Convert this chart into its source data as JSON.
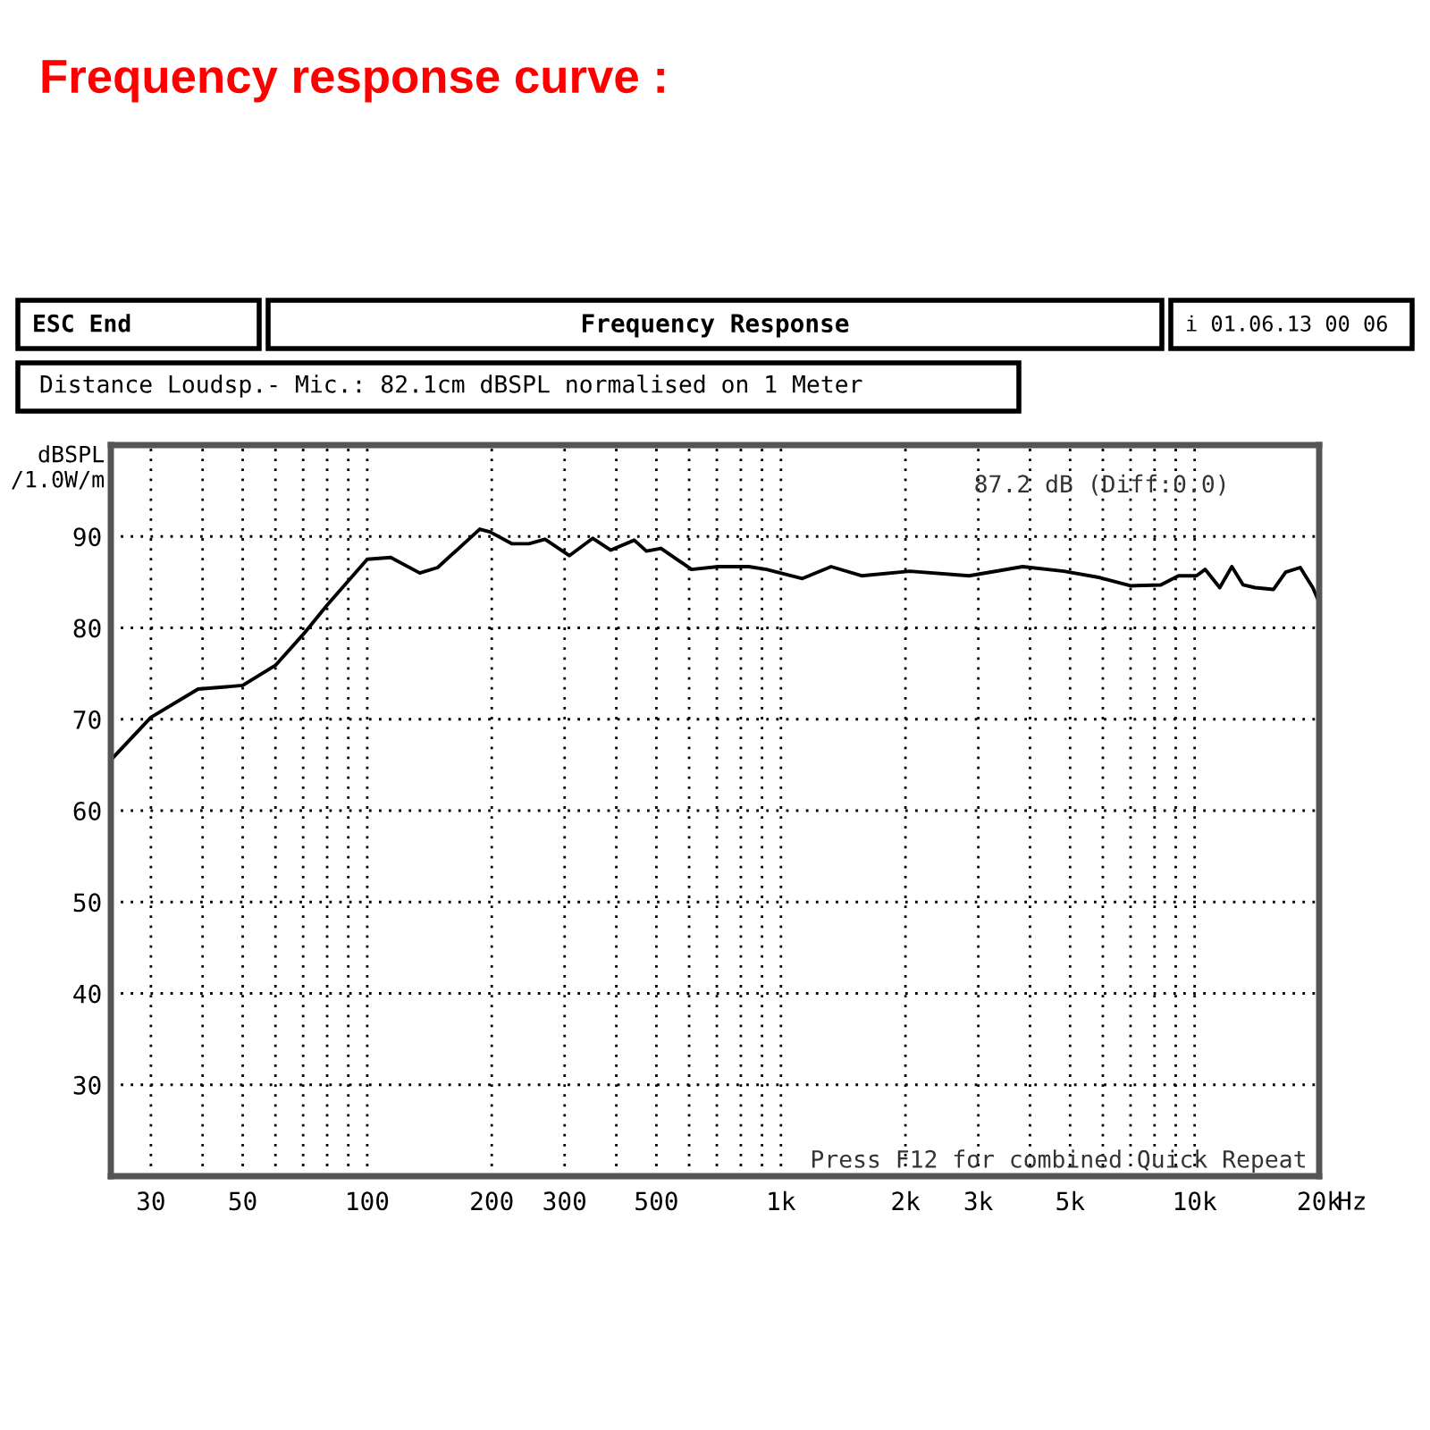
{
  "chart_data": {
    "type": "line",
    "title": "Frequency response curve :",
    "subtitle": "Frequency Response",
    "ylabel": "dBSPL\n/1.0W/m",
    "annotations": [
      "ESC End",
      "i 01.06.13 00 06",
      "Distance Loudsp.- Mic.: 82.1cm dBSPL normalised on 1 Meter",
      "87.2 dB (Diff:0.0)",
      "Press F12 for combined Quick Repeat"
    ],
    "log": "x",
    "grid": true,
    "line_style": "solid",
    "marker": "none",
    "xlim": [
      24,
      20000
    ],
    "ylim": [
      20,
      100
    ],
    "xticks": [
      30,
      {
        "value": 40,
        "label": null
      },
      50,
      {
        "value": 60,
        "label": null
      },
      {
        "value": 70,
        "label": null
      },
      {
        "value": 80,
        "label": null
      },
      {
        "value": 90,
        "label": null
      },
      100,
      200,
      300,
      {
        "value": 400,
        "label": null
      },
      500,
      {
        "value": 600,
        "label": null
      },
      {
        "value": 700,
        "label": null
      },
      {
        "value": 800,
        "label": null
      },
      {
        "value": 900,
        "label": null
      },
      {
        "value": 1000,
        "label": "1k"
      },
      {
        "value": 2000,
        "label": "2k"
      },
      {
        "value": 3000,
        "label": "3k"
      },
      {
        "value": 4000,
        "label": null
      },
      {
        "value": 5000,
        "label": "5k"
      },
      {
        "value": 6000,
        "label": null
      },
      {
        "value": 7000,
        "label": null
      },
      {
        "value": 8000,
        "label": null
      },
      {
        "value": 9000,
        "label": null
      },
      {
        "value": 10000,
        "label": "10k"
      },
      {
        "value": 20000,
        "label": "20k"
      }
    ],
    "xlabel": "Hz",
    "yticks": [
      30,
      40,
      50,
      60,
      70,
      80,
      90
    ],
    "series": [
      {
        "color": "#000000",
        "x": [
          24.3,
          30,
          39,
          50,
          60,
          71,
          80,
          100,
          114,
          134,
          148,
          187,
          198,
          224,
          246,
          269,
          308,
          351,
          388,
          442,
          473,
          513,
          608,
          705,
          836,
          923,
          1127,
          1322,
          1566,
          2050,
          2850,
          3840,
          4830,
          5900,
          7000,
          8280,
          9140,
          10100,
          10600,
          11500,
          12300,
          13100,
          14000,
          15500,
          16600,
          18000,
          19300,
          20000
        ],
        "values": [
          65.8,
          70.2,
          73.3,
          73.7,
          75.9,
          79.6,
          82.5,
          87.5,
          87.7,
          86.0,
          86.6,
          90.8,
          90.5,
          89.2,
          89.2,
          89.7,
          87.9,
          89.8,
          88.5,
          89.6,
          88.4,
          88.7,
          86.4,
          86.7,
          86.7,
          86.4,
          85.4,
          86.7,
          85.7,
          86.2,
          85.7,
          86.7,
          86.2,
          85.5,
          84.6,
          84.7,
          85.7,
          85.7,
          86.4,
          84.4,
          86.7,
          84.7,
          84.4,
          84.2,
          86.1,
          86.6,
          84.4,
          82.8
        ]
      }
    ]
  }
}
